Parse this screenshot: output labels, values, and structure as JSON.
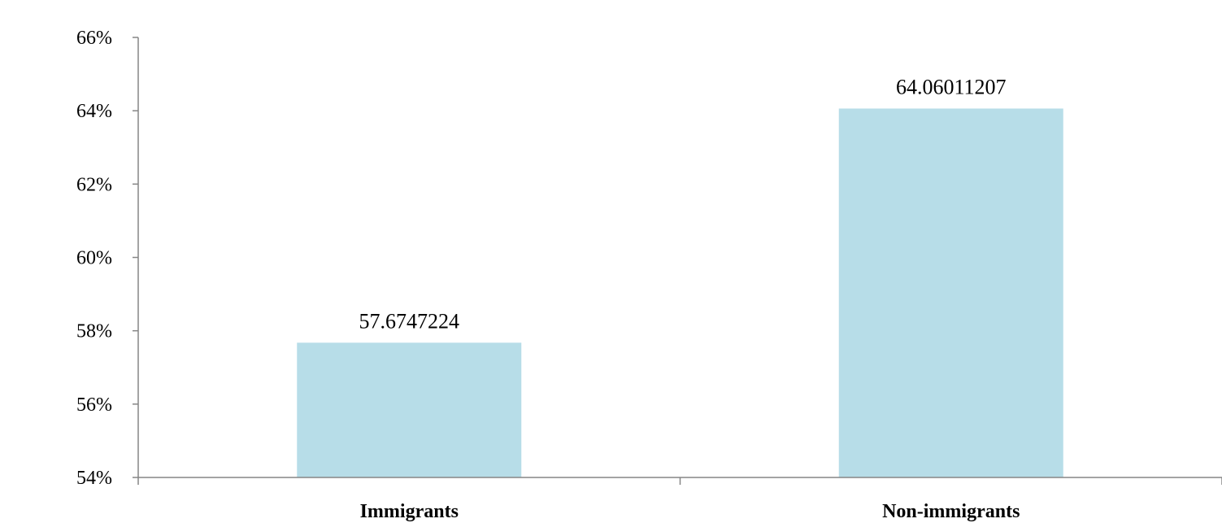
{
  "chart_data": {
    "type": "bar",
    "categories": [
      "Immigrants",
      "Non-immigrants"
    ],
    "values": [
      57.6747224,
      64.06011207
    ],
    "data_labels": [
      "57.6747224",
      "64.06011207"
    ],
    "ylim": [
      54,
      66
    ],
    "y_ticks": [
      54,
      56,
      58,
      60,
      62,
      64,
      66
    ],
    "y_tick_labels": [
      "54%",
      "56%",
      "58%",
      "60%",
      "62%",
      "64%",
      "66%"
    ],
    "grid": false,
    "bar_color": "#b7dde8",
    "title": "",
    "xlabel": "",
    "ylabel": ""
  },
  "header": {
    "title_fragment": "",
    "title_color": "#2e8b9e"
  }
}
